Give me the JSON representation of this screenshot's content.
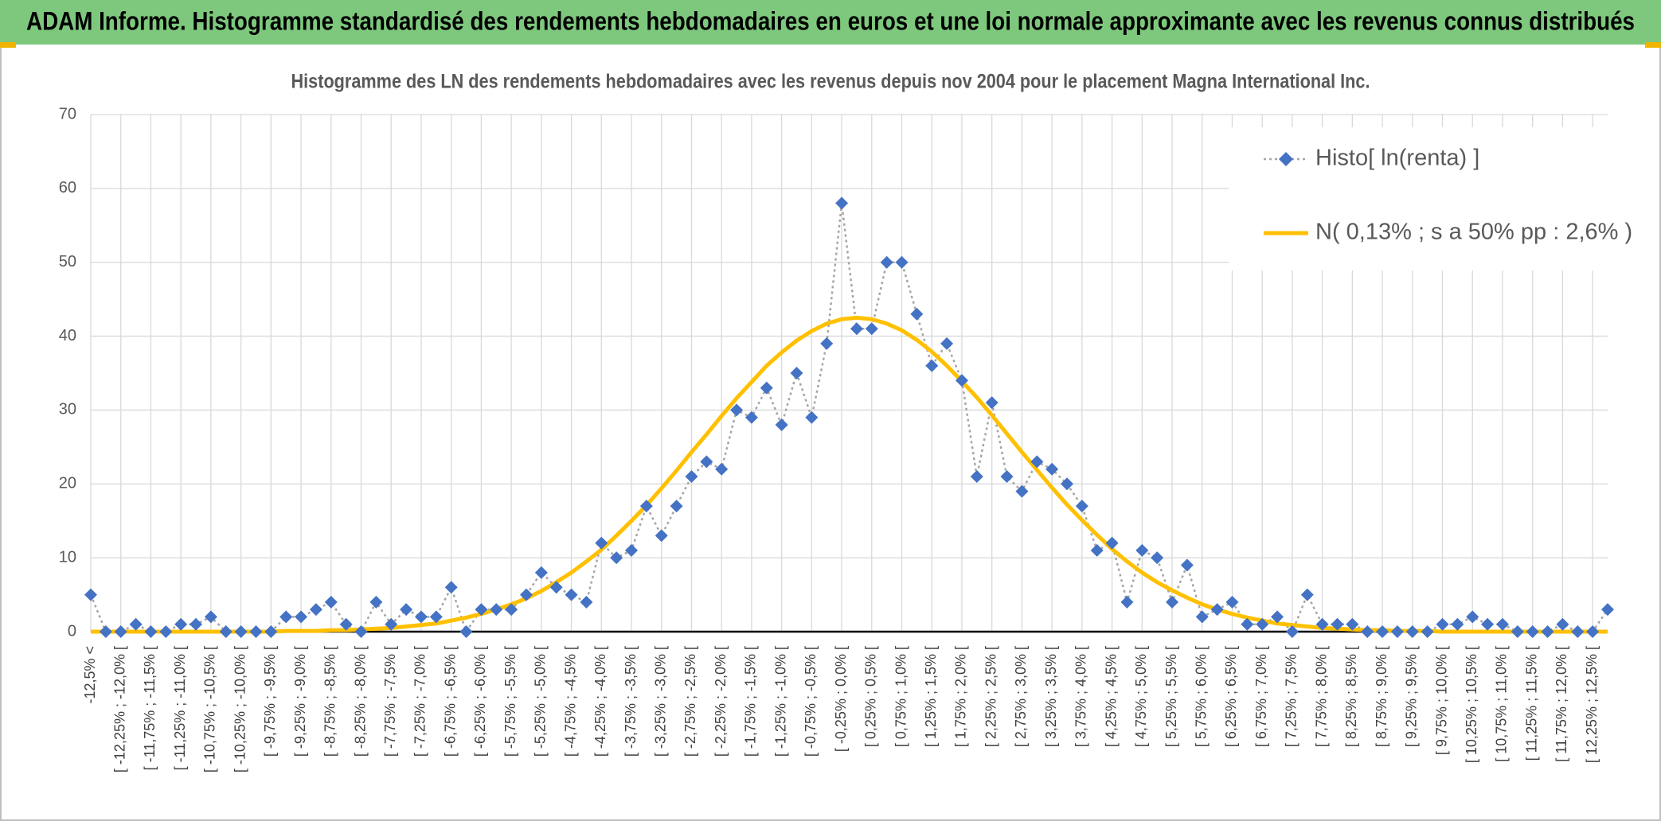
{
  "header": {
    "title": "ADAM Informe. Histogramme standardisé des rendements hebdomadaires en euros et une loi normale approximante avec les revenus connus distribués"
  },
  "chart_data": {
    "type": "line",
    "title": "Histogramme des LN des rendements hebdomadaires avec les revenus depuis nov 2004 pour le placement Magna International Inc.",
    "categories": [
      "-12,5% <",
      null,
      "[ -12,25% ; -12,0% [",
      null,
      "[ -11,75% ; -11,5% [",
      null,
      "[ -11,25% ; -11,0% [",
      null,
      "[ -10,75% ; -10,5% [",
      null,
      "[ -10,25% ; -10,0% [",
      null,
      "[ -9,75% ; -9,5% [",
      null,
      "[ -9,25% ; -9,0% [",
      null,
      "[ -8,75% ; -8,5% [",
      null,
      "[ -8,25% ; -8,0% [",
      null,
      "[ -7,75% ; -7,5% [",
      null,
      "[ -7,25% ; -7,0% [",
      null,
      "[ -6,75% ; -6,5% [",
      null,
      "[ -6,25% ; -6,0% [",
      null,
      "[ -5,75% ; -5,5% [",
      null,
      "[ -5,25% ; -5,0% [",
      null,
      "[ -4,75% ; -4,5% [",
      null,
      "[ -4,25% ; -4,0% [",
      null,
      "[ -3,75% ; -3,5% [",
      null,
      "[ -3,25% ; -3,0% [",
      null,
      "[ -2,75% ; -2,5% [",
      null,
      "[ -2,25% ; -2,0% [",
      null,
      "[ -1,75% ; -1,5% [",
      null,
      "[ -1,25% ; -1,0% [",
      null,
      "[ -0,75% ; -0,5% [",
      null,
      "[ -0,25% ; 0,0% [",
      null,
      "[ 0,25% ; 0,5% [",
      null,
      "[ 0,75% ; 1,0% [",
      null,
      "[ 1,25% ; 1,5% [",
      null,
      "[ 1,75% ; 2,0% [",
      null,
      "[ 2,25% ; 2,5% [",
      null,
      "[ 2,75% ; 3,0% [",
      null,
      "[ 3,25% ; 3,5% [",
      null,
      "[ 3,75% ; 4,0% [",
      null,
      "[ 4,25% ; 4,5% [",
      null,
      "[ 4,75% ; 5,0% [",
      null,
      "[ 5,25% ; 5,5% [",
      null,
      "[ 5,75% ; 6,0% [",
      null,
      "[ 6,25% ; 6,5% [",
      null,
      "[ 6,75% ; 7,0% [",
      null,
      "[ 7,25% ; 7,5% [",
      null,
      "[ 7,75% ; 8,0% [",
      null,
      "[ 8,25% ; 8,5% [",
      null,
      "[ 8,75% ; 9,0% [",
      null,
      "[ 9,25% ; 9,5% [",
      null,
      "[ 9,75% ; 10,0% [",
      null,
      "[ 10,25% ; 10,5% [",
      null,
      "[ 10,75% ; 11,0% [",
      null,
      "[ 11,25% ; 11,5% [",
      null,
      "[ 11,75% ; 12,0% [",
      null,
      "[ 12,25% ; 12,5% [",
      null
    ],
    "series": [
      {
        "name": "Histo[ ln(renta) ]",
        "color": "#4472c4",
        "line_color": "#a5a5a5",
        "line_style": "dotted",
        "marker": "diamond",
        "values": [
          5,
          0,
          0,
          1,
          0,
          0,
          1,
          1,
          2,
          0,
          0,
          0,
          0,
          2,
          2,
          3,
          4,
          1,
          0,
          4,
          1,
          3,
          2,
          2,
          6,
          0,
          3,
          3,
          3,
          5,
          8,
          6,
          5,
          4,
          12,
          10,
          11,
          17,
          13,
          17,
          21,
          23,
          22,
          30,
          29,
          33,
          28,
          35,
          29,
          39,
          58,
          41,
          41,
          50,
          50,
          43,
          36,
          39,
          34,
          21,
          31,
          21,
          19,
          23,
          22,
          20,
          17,
          11,
          12,
          4,
          11,
          10,
          4,
          9,
          2,
          3,
          4,
          1,
          1,
          2,
          0,
          5,
          1,
          1,
          1,
          0,
          0,
          0,
          0,
          0,
          1,
          1,
          2,
          1,
          1,
          0,
          0,
          0,
          1,
          0,
          0,
          3
        ]
      },
      {
        "name": "N( 0,13% ; s a 50% pp : 2,6% )",
        "color": "#ffc000",
        "line_color": "#ffc000",
        "line_style": "solid",
        "marker": "none",
        "values": [
          0,
          0,
          0,
          0,
          0,
          0,
          0,
          0,
          0,
          0,
          0,
          0,
          0,
          0.1,
          0.1,
          0.1,
          0.2,
          0.2,
          0.3,
          0.4,
          0.5,
          0.7,
          0.9,
          1.1,
          1.5,
          1.9,
          2.4,
          3.0,
          3.7,
          4.5,
          5.5,
          6.7,
          8.0,
          9.5,
          11.1,
          13.0,
          15.0,
          17.1,
          19.4,
          21.8,
          24.3,
          26.7,
          29.2,
          31.6,
          33.8,
          36.0,
          37.8,
          39.4,
          40.7,
          41.7,
          42.3,
          42.5,
          42.3,
          41.7,
          40.8,
          39.5,
          37.9,
          36.0,
          33.9,
          31.7,
          29.3,
          26.8,
          24.3,
          21.9,
          19.5,
          17.2,
          15.1,
          13.1,
          11.2,
          9.5,
          8.0,
          6.7,
          5.6,
          4.6,
          3.7,
          3.0,
          2.4,
          1.9,
          1.5,
          1.1,
          0.9,
          0.7,
          0.5,
          0.4,
          0.3,
          0.2,
          0.2,
          0.1,
          0.1,
          0.1,
          0,
          0,
          0,
          0,
          0,
          0,
          0,
          0,
          0,
          0,
          0,
          0
        ]
      }
    ],
    "ylim": [
      0,
      70
    ],
    "yticks": [
      0,
      10,
      20,
      30,
      40,
      50,
      60,
      70
    ],
    "grid": true,
    "legend": "upper right"
  }
}
